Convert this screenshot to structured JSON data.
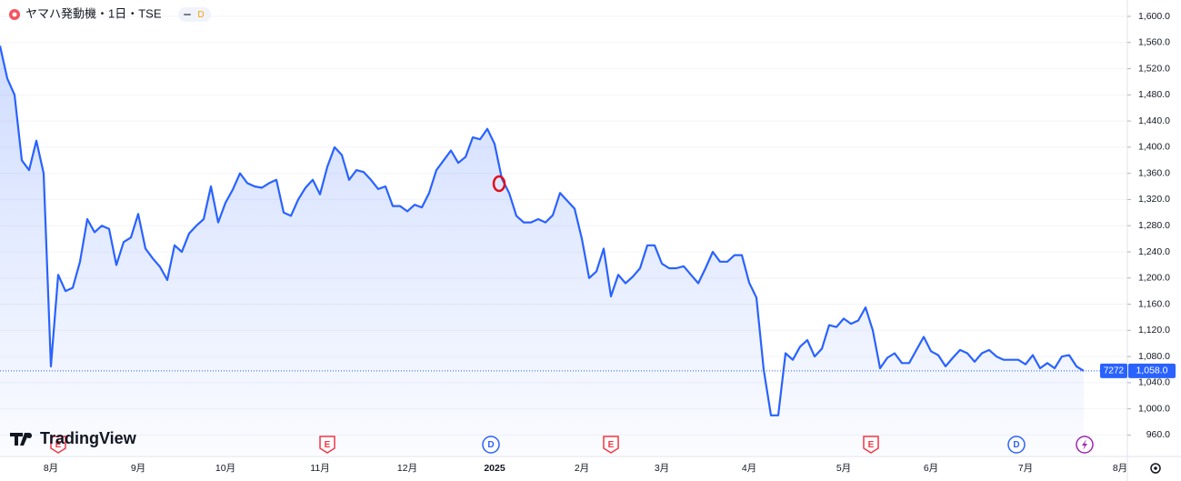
{
  "chart_data": {
    "type": "line",
    "title": "ヤマハ発動機・1日・TSE",
    "interval_badge": "D",
    "watermark": "TradingView",
    "symbol_code": "7272",
    "price_label": "1,058.0",
    "color": "#2962ff",
    "grid": true,
    "events": [
      "E",
      "E",
      "D",
      "E",
      "E",
      "D"
    ],
    "categories": [
      null,
      null,
      null,
      null,
      null,
      null,
      null,
      "8月",
      null,
      null,
      null,
      null,
      null,
      null,
      null,
      null,
      null,
      null,
      null,
      "9月",
      null,
      null,
      null,
      null,
      null,
      null,
      null,
      null,
      null,
      null,
      null,
      "10月",
      null,
      null,
      null,
      null,
      null,
      null,
      null,
      null,
      null,
      null,
      null,
      null,
      "11月",
      null,
      null,
      null,
      null,
      null,
      null,
      null,
      null,
      null,
      null,
      null,
      "12月",
      null,
      null,
      null,
      null,
      null,
      null,
      null,
      null,
      null,
      null,
      null,
      "2025",
      null,
      null,
      null,
      null,
      null,
      null,
      null,
      null,
      null,
      null,
      null,
      "2月",
      null,
      null,
      null,
      null,
      null,
      null,
      null,
      null,
      null,
      null,
      "3月",
      null,
      null,
      null,
      null,
      null,
      null,
      null,
      null,
      null,
      null,
      null,
      "4月",
      null,
      null,
      null,
      null,
      null,
      null,
      null,
      null,
      null,
      null,
      null,
      null,
      "5月",
      null,
      null,
      null,
      null,
      null,
      null,
      null,
      null,
      null,
      null,
      null,
      "6月",
      null,
      null,
      null,
      null,
      null,
      null,
      null,
      null,
      null,
      null,
      null,
      null,
      "7月",
      null,
      null,
      null,
      null,
      null,
      null,
      null,
      null,
      null,
      null,
      null,
      null,
      "8月",
      null
    ],
    "values": [
      1555,
      1505,
      1480,
      1380,
      1365,
      1410,
      1360,
      1065,
      1205,
      1180,
      1185,
      1225,
      1290,
      1270,
      1280,
      1275,
      1220,
      1255,
      1262,
      1298,
      1245,
      1230,
      1217,
      1197,
      1250,
      1240,
      1268,
      1280,
      1290,
      1340,
      1285,
      1315,
      1335,
      1360,
      1345,
      1340,
      1338,
      1345,
      1350,
      1300,
      1295,
      1320,
      1338,
      1350,
      1328,
      1370,
      1400,
      1388,
      1350,
      1365,
      1362,
      1350,
      1336,
      1340,
      1310,
      1310,
      1302,
      1312,
      1308,
      1330,
      1365,
      1380,
      1395,
      1376,
      1385,
      1415,
      1412,
      1428,
      1405,
      1352,
      1330,
      1295,
      1285,
      1285,
      1290,
      1285,
      1296,
      1330,
      1318,
      1306,
      1260,
      1200,
      1210,
      1245,
      1172,
      1205,
      1192,
      1202,
      1215,
      1250,
      1250,
      1222,
      1215,
      1215,
      1218,
      1205,
      1192,
      1215,
      1240,
      1225,
      1225,
      1235,
      1235,
      1193,
      1170,
      1060,
      990,
      990,
      1085,
      1075,
      1095,
      1105,
      1080,
      1092,
      1128,
      1125,
      1138,
      1130,
      1135,
      1155,
      1120,
      1062,
      1078,
      1085,
      1070,
      1070,
      1090,
      1110,
      1088,
      1082,
      1065,
      1078,
      1090,
      1085,
      1072,
      1085,
      1090,
      1080,
      1075,
      1075,
      1075,
      1068,
      1082,
      1062,
      1070,
      1062,
      1080,
      1082,
      1065,
      1058,
      null,
      null,
      null,
      null,
      null,
      null
    ],
    "ylim": [
      930,
      1625
    ],
    "yticks": [
      {
        "value": 960,
        "label": "960.0"
      },
      {
        "value": 1000,
        "label": "1,000.0"
      },
      {
        "value": 1040,
        "label": "1,040.0"
      },
      {
        "value": 1080,
        "label": "1,080.0"
      },
      {
        "value": 1120,
        "label": "1,120.0"
      },
      {
        "value": 1160,
        "label": "1,160.0"
      },
      {
        "value": 1200,
        "label": "1,200.0"
      },
      {
        "value": 1240,
        "label": "1,240.0"
      },
      {
        "value": 1280,
        "label": "1,280.0"
      },
      {
        "value": 1320,
        "label": "1,320.0"
      },
      {
        "value": 1360,
        "label": "1,360.0"
      },
      {
        "value": 1400,
        "label": "1,400.0"
      },
      {
        "value": 1440,
        "label": "1,440.0"
      },
      {
        "value": 1480,
        "label": "1,480.0"
      },
      {
        "value": 1520,
        "label": "1,520.0"
      },
      {
        "value": 1560,
        "label": "1,560.0"
      },
      {
        "value": 1600,
        "label": "1,600.0"
      }
    ]
  }
}
